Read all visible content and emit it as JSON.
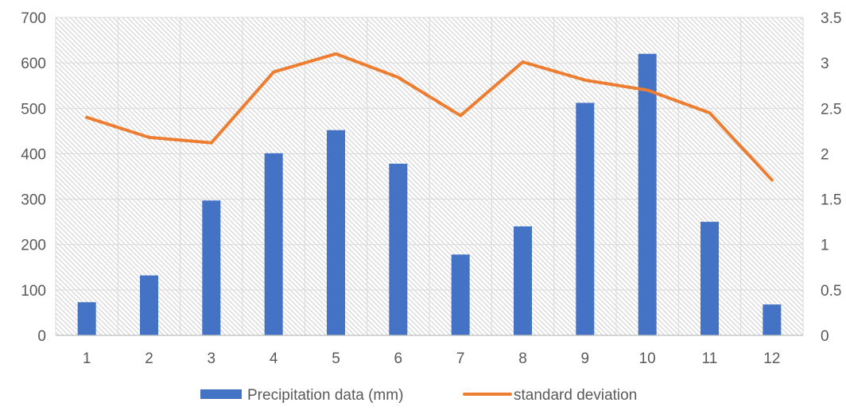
{
  "chart_data": {
    "type": "bar",
    "categories": [
      "1",
      "2",
      "3",
      "4",
      "5",
      "6",
      "7",
      "8",
      "9",
      "10",
      "11",
      "12"
    ],
    "series": [
      {
        "name": "Precipitation data (mm)",
        "type": "bar",
        "axis": "left",
        "color": "#4472C4",
        "values": [
          73,
          132,
          297,
          401,
          452,
          378,
          178,
          240,
          512,
          620,
          250,
          68
        ]
      },
      {
        "name": "standard deviation",
        "type": "line",
        "axis": "right",
        "color": "#ED7D31",
        "values": [
          2.4,
          2.18,
          2.12,
          2.9,
          3.1,
          2.84,
          2.42,
          3.01,
          2.81,
          2.7,
          2.45,
          1.71
        ]
      }
    ],
    "y_left": {
      "ylim": [
        0,
        700
      ],
      "ticks": [
        "0",
        "100",
        "200",
        "300",
        "400",
        "500",
        "600",
        "700"
      ]
    },
    "y_right": {
      "ylim": [
        0,
        3.5
      ],
      "ticks": [
        "0",
        "0.5",
        "1",
        "1.5",
        "2",
        "2.5",
        "3",
        "3.5"
      ]
    },
    "grid": true,
    "plot_fill": "hatched",
    "legend": "bottom",
    "title": "",
    "xlabel": "",
    "ylabel": ""
  }
}
